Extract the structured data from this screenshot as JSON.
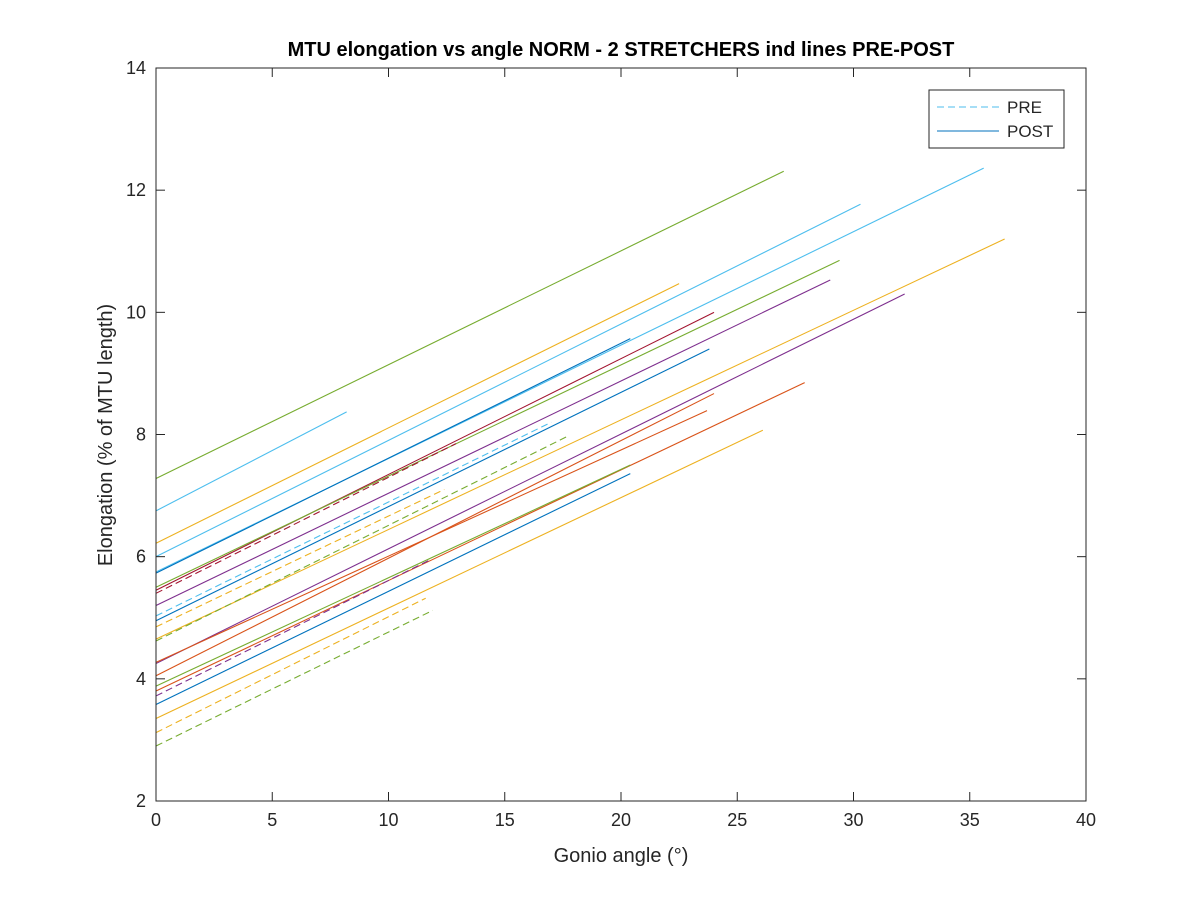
{
  "chart_data": {
    "type": "line",
    "title": "MTU elongation vs angle NORM - 2 STRETCHERS ind lines PRE-POST",
    "xlabel": "Gonio angle (°)",
    "ylabel": "Elongation (% of MTU length)",
    "xlim": [
      0,
      40
    ],
    "ylim": [
      2,
      14
    ],
    "xticks": [
      0,
      5,
      10,
      15,
      20,
      25,
      30,
      35,
      40
    ],
    "yticks": [
      2,
      4,
      6,
      8,
      10,
      12,
      14
    ],
    "grid": false,
    "legend": {
      "placement": "top-right",
      "entries": [
        {
          "label": "PRE",
          "style": "dashed",
          "color": "#4DBEEE"
        },
        {
          "label": "POST",
          "style": "solid",
          "color": "#0072BD"
        }
      ]
    },
    "series": [
      {
        "style": "solid",
        "color": "#77AC30",
        "x": [
          0,
          27.0
        ],
        "y": [
          7.28,
          12.31
        ]
      },
      {
        "style": "solid",
        "color": "#4DBEEE",
        "x": [
          0,
          8.2
        ],
        "y": [
          6.75,
          8.37
        ]
      },
      {
        "style": "solid",
        "color": "#EDB120",
        "x": [
          0,
          22.5
        ],
        "y": [
          6.22,
          10.47
        ]
      },
      {
        "style": "solid",
        "color": "#4DBEEE",
        "x": [
          0,
          30.3
        ],
        "y": [
          6.0,
          11.77
        ]
      },
      {
        "style": "solid",
        "color": "#4DBEEE",
        "x": [
          0,
          35.6
        ],
        "y": [
          5.75,
          12.36
        ]
      },
      {
        "style": "solid",
        "color": "#0072BD",
        "x": [
          0,
          20.4
        ],
        "y": [
          5.73,
          9.57
        ]
      },
      {
        "style": "solid",
        "color": "#A2142F",
        "x": [
          0,
          24.0
        ],
        "y": [
          5.45,
          10.0
        ]
      },
      {
        "style": "solid",
        "color": "#77AC30",
        "x": [
          0,
          29.4
        ],
        "y": [
          5.5,
          10.85
        ]
      },
      {
        "style": "solid",
        "color": "#7E2F8E",
        "x": [
          0,
          29.0
        ],
        "y": [
          5.2,
          10.53
        ]
      },
      {
        "style": "solid",
        "color": "#EDB120",
        "x": [
          0,
          36.5
        ],
        "y": [
          4.65,
          11.2
        ]
      },
      {
        "style": "solid",
        "color": "#0072BD",
        "x": [
          0,
          23.8
        ],
        "y": [
          4.95,
          9.4
        ]
      },
      {
        "style": "solid",
        "color": "#7E2F8E",
        "x": [
          0,
          32.2
        ],
        "y": [
          4.25,
          10.3
        ]
      },
      {
        "style": "solid",
        "color": "#D95319",
        "x": [
          0,
          24.0
        ],
        "y": [
          4.05,
          8.67
        ]
      },
      {
        "style": "solid",
        "color": "#D95319",
        "x": [
          0,
          23.7
        ],
        "y": [
          4.27,
          8.39
        ]
      },
      {
        "style": "solid",
        "color": "#D95319",
        "x": [
          0,
          27.9
        ],
        "y": [
          3.8,
          8.85
        ]
      },
      {
        "style": "solid",
        "color": "#77AC30",
        "x": [
          0,
          20.4
        ],
        "y": [
          3.88,
          7.5
        ]
      },
      {
        "style": "solid",
        "color": "#0072BD",
        "x": [
          0,
          20.4
        ],
        "y": [
          3.58,
          7.36
        ]
      },
      {
        "style": "solid",
        "color": "#EDB120",
        "x": [
          0,
          26.1
        ],
        "y": [
          3.35,
          8.07
        ]
      },
      {
        "style": "dashed",
        "color": "#4DBEEE",
        "x": [
          0,
          17.0
        ],
        "y": [
          5.03,
          8.2
        ]
      },
      {
        "style": "dashed",
        "color": "#A2142F",
        "x": [
          0,
          12.9
        ],
        "y": [
          5.4,
          7.85
        ]
      },
      {
        "style": "dashed",
        "color": "#EDB120",
        "x": [
          0,
          12.4
        ],
        "y": [
          4.85,
          7.1
        ]
      },
      {
        "style": "dashed",
        "color": "#77AC30",
        "x": [
          0,
          17.7
        ],
        "y": [
          4.62,
          7.97
        ]
      },
      {
        "style": "dashed",
        "color": "#7E2F8E",
        "x": [
          0,
          11.8
        ],
        "y": [
          3.72,
          5.95
        ]
      },
      {
        "style": "dashed",
        "color": "#EDB120",
        "x": [
          0,
          11.6
        ],
        "y": [
          3.12,
          5.32
        ]
      },
      {
        "style": "dashed",
        "color": "#77AC30",
        "x": [
          0,
          11.9
        ],
        "y": [
          2.9,
          5.12
        ]
      }
    ]
  }
}
